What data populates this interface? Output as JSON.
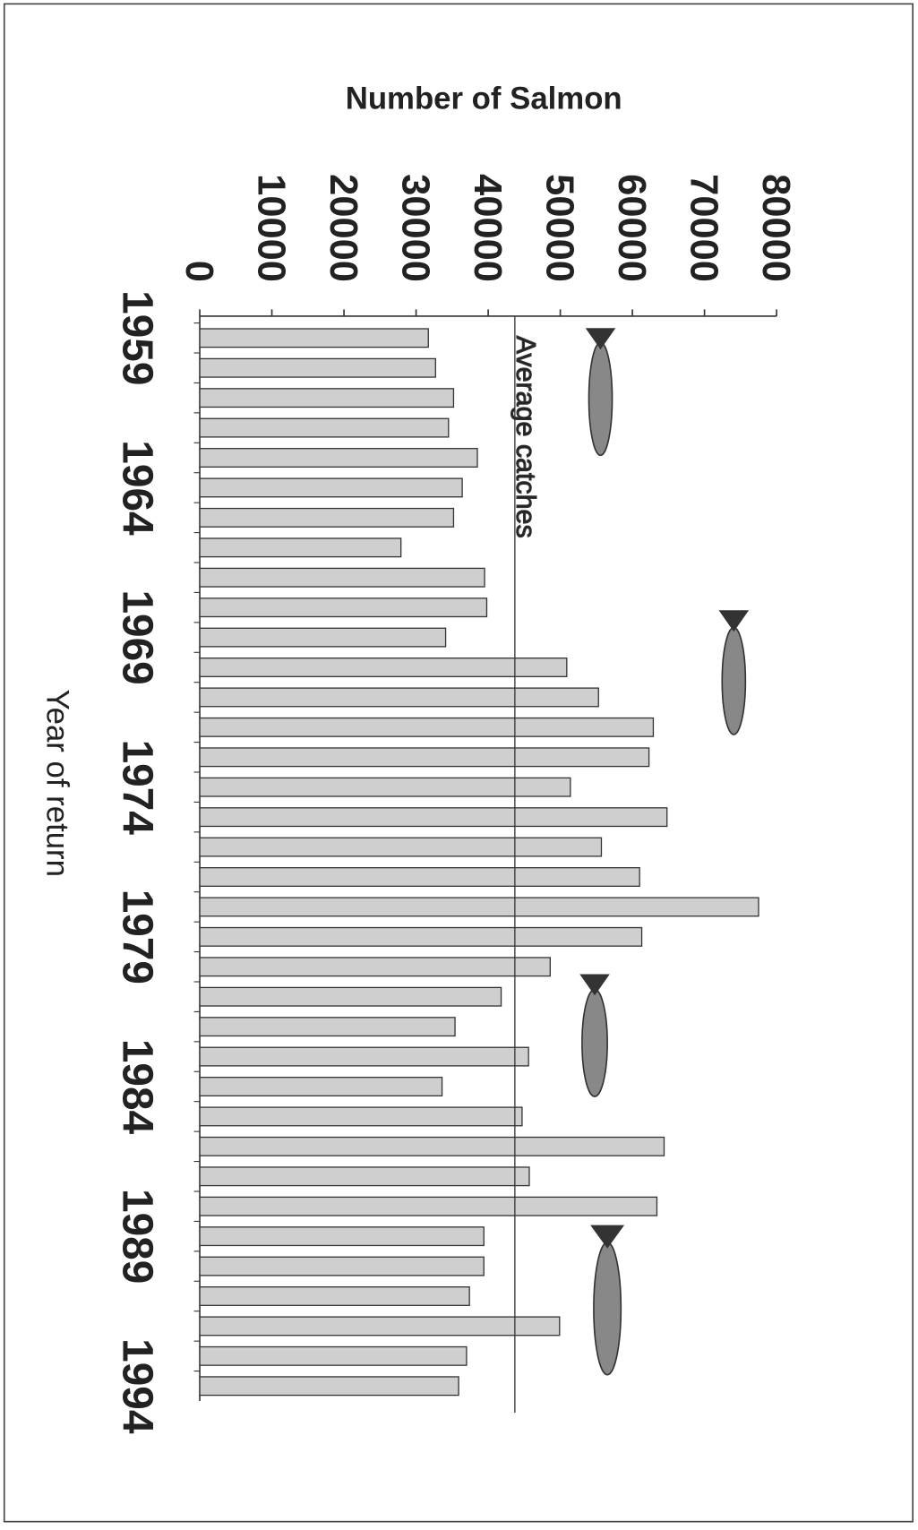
{
  "chart_data": {
    "type": "bar",
    "orientation": "horizontal",
    "x_label": "Number of Salmon",
    "y_label": "Year of return",
    "categories": [
      "1959",
      null,
      null,
      null,
      null,
      "1964",
      null,
      null,
      null,
      null,
      "1969",
      null,
      null,
      null,
      null,
      "1974",
      null,
      null,
      null,
      null,
      "1979",
      null,
      null,
      null,
      null,
      "1984",
      null,
      null,
      null,
      null,
      "1989",
      null,
      null,
      null,
      null,
      "1994"
    ],
    "values": [
      31700,
      32700,
      35200,
      34500,
      38500,
      36400,
      35200,
      27900,
      39500,
      39800,
      34100,
      50900,
      55300,
      62900,
      62300,
      51400,
      64800,
      55700,
      61000,
      77500,
      61300,
      48600,
      41800,
      35400,
      45600,
      33600,
      44700,
      64400,
      45700,
      63400,
      39400,
      39400,
      37400,
      49900,
      37000,
      35900
    ],
    "color": "#cfcfcf",
    "xlim": [
      0,
      80000
    ],
    "xticks": [
      0,
      10000,
      20000,
      30000,
      40000,
      50000,
      60000,
      70000,
      80000
    ],
    "average_line": {
      "label": "Average catches",
      "value": 43700
    }
  }
}
